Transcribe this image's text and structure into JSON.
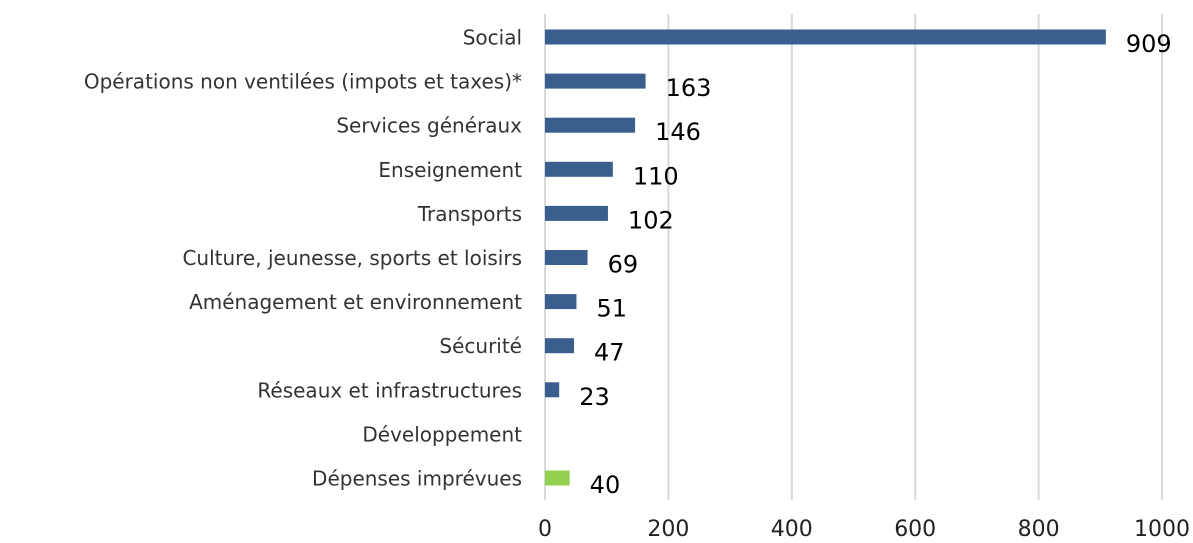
{
  "chart_data": {
    "type": "hbar",
    "categories": [
      "Social",
      "Opérations non ventilées (impots et taxes)*",
      "Services généraux",
      "Enseignement",
      "Transports",
      "Culture, jeunesse, sports et loisirs",
      "Aménagement et environnement",
      "Sécurité",
      "Réseaux et infrastructures",
      "Développement",
      "Dépenses imprévues"
    ],
    "values": [
      909,
      163,
      146,
      110,
      102,
      69,
      51,
      47,
      23,
      null,
      40
    ],
    "colors": [
      "#3a5f8f",
      "#3a5f8f",
      "#3a5f8f",
      "#3a5f8f",
      "#3a5f8f",
      "#3a5f8f",
      "#3a5f8f",
      "#3a5f8f",
      "#3a5f8f",
      "#3a5f8f",
      "#92d050"
    ],
    "xlim": [
      0,
      1000
    ],
    "xticks": [
      0,
      200,
      400,
      600,
      800,
      1000
    ],
    "grid": true
  }
}
